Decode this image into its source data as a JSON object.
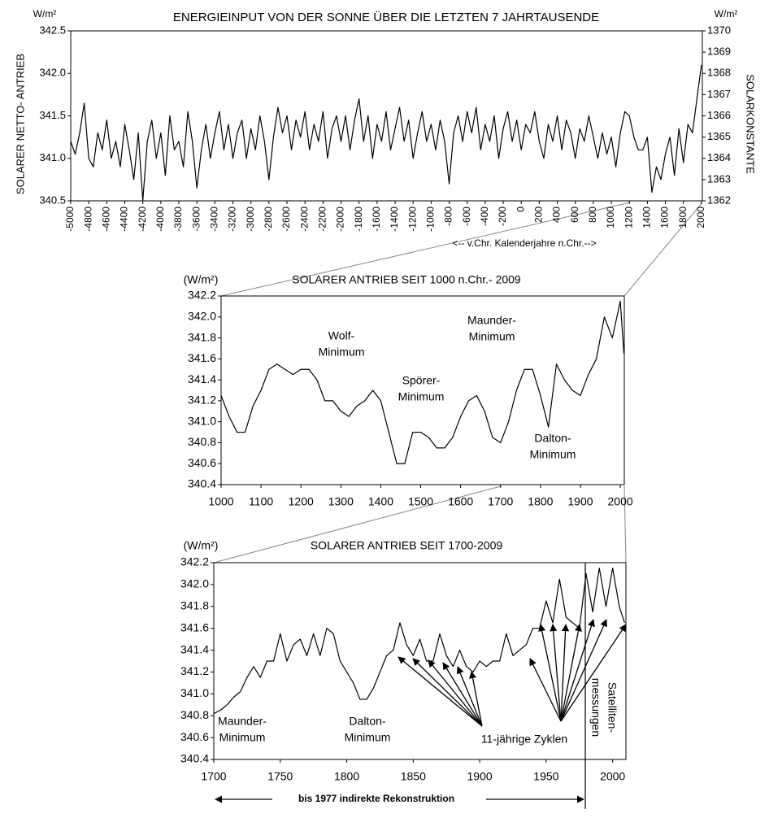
{
  "chart_data": [
    {
      "type": "line",
      "title": "ENERGIEINPUT VON DER SONNE ÜBER DIE LETZTEN 7 JAHRTAUSENDE",
      "y_unit": "W/m²",
      "y2_unit": "W/m²",
      "y_label": "SOLARER NETTO- ANTRIEB",
      "y2_label": "SOLARKONSTANTE",
      "x_label": "<-- v.Chr. Kalenderjahre n.Chr.-->",
      "x": [
        -5000,
        -4950,
        -4900,
        -4850,
        -4800,
        -4750,
        -4700,
        -4650,
        -4600,
        -4550,
        -4500,
        -4450,
        -4400,
        -4350,
        -4300,
        -4250,
        -4200,
        -4150,
        -4100,
        -4050,
        -4000,
        -3950,
        -3900,
        -3850,
        -3800,
        -3750,
        -3700,
        -3650,
        -3600,
        -3550,
        -3500,
        -3450,
        -3400,
        -3350,
        -3300,
        -3250,
        -3200,
        -3150,
        -3100,
        -3050,
        -3000,
        -2950,
        -2900,
        -2850,
        -2800,
        -2750,
        -2700,
        -2650,
        -2600,
        -2550,
        -2500,
        -2450,
        -2400,
        -2350,
        -2300,
        -2250,
        -2200,
        -2150,
        -2100,
        -2050,
        -2000,
        -1950,
        -1900,
        -1850,
        -1800,
        -1750,
        -1700,
        -1650,
        -1600,
        -1550,
        -1500,
        -1450,
        -1400,
        -1350,
        -1300,
        -1250,
        -1200,
        -1150,
        -1100,
        -1050,
        -1000,
        -950,
        -900,
        -850,
        -800,
        -750,
        -700,
        -650,
        -600,
        -550,
        -500,
        -450,
        -400,
        -350,
        -300,
        -250,
        -200,
        -150,
        -100,
        -50,
        0,
        50,
        100,
        150,
        200,
        250,
        300,
        350,
        400,
        450,
        500,
        550,
        600,
        650,
        700,
        750,
        800,
        850,
        900,
        950,
        1000,
        1050,
        1100,
        1150,
        1200,
        1250,
        1300,
        1350,
        1400,
        1450,
        1500,
        1550,
        1600,
        1650,
        1700,
        1750,
        1800,
        1850,
        1900,
        1950,
        2000
      ],
      "series": [
        {
          "color": "#000000",
          "values": [
            341.2,
            341.05,
            341.3,
            341.65,
            341.0,
            340.9,
            341.3,
            341.1,
            341.45,
            341.0,
            341.2,
            340.9,
            341.4,
            341.1,
            340.75,
            341.3,
            340.5,
            341.2,
            341.45,
            341.0,
            341.3,
            340.8,
            341.5,
            341.1,
            341.2,
            340.9,
            341.55,
            341.2,
            340.65,
            341.1,
            341.4,
            341.0,
            341.3,
            341.55,
            341.1,
            341.4,
            341.0,
            341.3,
            341.45,
            341.0,
            341.35,
            341.1,
            341.5,
            341.2,
            340.75,
            341.25,
            341.6,
            341.3,
            341.5,
            341.1,
            341.45,
            341.25,
            341.55,
            341.1,
            341.4,
            341.2,
            341.55,
            341.0,
            341.35,
            341.5,
            341.2,
            341.5,
            341.1,
            341.45,
            341.7,
            341.2,
            341.5,
            341.0,
            341.4,
            341.2,
            341.55,
            341.1,
            341.35,
            341.6,
            341.2,
            341.45,
            341.0,
            341.3,
            341.55,
            341.2,
            341.4,
            341.1,
            341.45,
            341.2,
            340.7,
            341.3,
            341.5,
            341.2,
            341.55,
            341.3,
            341.6,
            341.1,
            341.4,
            341.2,
            341.5,
            341.0,
            341.35,
            341.55,
            341.2,
            341.45,
            341.1,
            341.4,
            341.3,
            341.55,
            341.2,
            341.0,
            341.4,
            341.2,
            341.5,
            341.1,
            341.45,
            341.3,
            341.0,
            341.35,
            341.2,
            341.5,
            341.25,
            341.0,
            341.3,
            341.05,
            341.25,
            340.9,
            341.3,
            341.55,
            341.5,
            341.25,
            341.1,
            341.1,
            341.25,
            340.6,
            340.9,
            340.75,
            341.05,
            341.25,
            340.8,
            341.35,
            340.95,
            341.4,
            341.3,
            341.7,
            342.1
          ]
        }
      ],
      "xlim": [
        -5000,
        2010
      ],
      "xticks": [
        -5000,
        -4800,
        -4600,
        -4400,
        -4200,
        -4000,
        -3800,
        -3600,
        -3400,
        -3200,
        -3000,
        -2800,
        -2600,
        -2400,
        -2200,
        -2000,
        -1800,
        -1600,
        -1400,
        -1200,
        -1000,
        -800,
        -600,
        -400,
        -200,
        0,
        200,
        400,
        600,
        800,
        1000,
        1200,
        1400,
        1600,
        1800,
        2000
      ],
      "ylim": [
        340.5,
        342.5
      ],
      "yticks": [
        340.5,
        {
          "value": 341,
          "label": "341.0"
        },
        341.5,
        {
          "value": 342,
          "label": "342.0"
        },
        342.5
      ],
      "y2lim": [
        1362,
        1370
      ],
      "y2ticks": [
        1362,
        1363,
        1364,
        1365,
        1366,
        1367,
        1368,
        1369,
        1370
      ]
    },
    {
      "type": "line",
      "title": "SOLARER ANTRIEB SEIT 1000 n.Chr.- 2009",
      "y_unit": "(W/m²)",
      "x": [
        1000,
        1020,
        1040,
        1060,
        1080,
        1100,
        1120,
        1140,
        1160,
        1180,
        1200,
        1220,
        1240,
        1260,
        1280,
        1300,
        1320,
        1340,
        1360,
        1380,
        1400,
        1420,
        1440,
        1460,
        1480,
        1500,
        1520,
        1540,
        1560,
        1580,
        1600,
        1620,
        1640,
        1660,
        1680,
        1700,
        1720,
        1740,
        1760,
        1780,
        1800,
        1820,
        1840,
        1860,
        1880,
        1900,
        1920,
        1940,
        1960,
        1980,
        2000,
        2009
      ],
      "series": [
        {
          "color": "#000000",
          "values": [
            341.25,
            341.05,
            340.9,
            340.9,
            341.15,
            341.3,
            341.5,
            341.55,
            341.5,
            341.45,
            341.5,
            341.5,
            341.4,
            341.2,
            341.2,
            341.1,
            341.05,
            341.15,
            341.2,
            341.3,
            341.2,
            340.9,
            340.6,
            340.6,
            340.9,
            340.9,
            340.85,
            340.75,
            340.75,
            340.85,
            341.05,
            341.2,
            341.25,
            341.1,
            340.85,
            340.8,
            341.0,
            341.3,
            341.5,
            341.5,
            341.25,
            340.95,
            341.55,
            341.4,
            341.3,
            341.25,
            341.45,
            341.6,
            342.0,
            341.8,
            342.15,
            341.65
          ]
        }
      ],
      "xlim": [
        1000,
        2010
      ],
      "xticks": [
        1000,
        1100,
        1200,
        1300,
        1400,
        1500,
        1600,
        1700,
        1800,
        1900,
        2000
      ],
      "ylim": [
        340.4,
        342.2
      ],
      "yticks": [
        340.4,
        340.6,
        340.8,
        {
          "value": 341,
          "label": "341.0"
        },
        341.2,
        341.4,
        341.6,
        341.8,
        {
          "value": 342,
          "label": "342.0"
        },
        342.2
      ],
      "annotations": [
        {
          "lines": [
            "Wolf-",
            "Minimum"
          ]
        },
        {
          "lines": [
            "Spörer-",
            "Minimum"
          ]
        },
        {
          "lines": [
            "Maunder-",
            "Minimum"
          ]
        },
        {
          "lines": [
            "Dalton-",
            "Minimum"
          ]
        }
      ]
    },
    {
      "type": "line",
      "title": "SOLARER ANTRIEB SEIT 1700-2009",
      "y_unit": "(W/m²)",
      "x": [
        1700,
        1705,
        1710,
        1715,
        1720,
        1725,
        1730,
        1735,
        1740,
        1745,
        1750,
        1755,
        1760,
        1765,
        1770,
        1775,
        1780,
        1785,
        1790,
        1795,
        1800,
        1805,
        1810,
        1815,
        1820,
        1825,
        1830,
        1835,
        1840,
        1845,
        1850,
        1855,
        1860,
        1865,
        1870,
        1875,
        1880,
        1885,
        1890,
        1895,
        1900,
        1905,
        1910,
        1915,
        1920,
        1925,
        1930,
        1935,
        1940,
        1945,
        1950,
        1955,
        1960,
        1965,
        1970,
        1975,
        1980,
        1985,
        1990,
        1995,
        2000,
        2005,
        2009
      ],
      "series": [
        {
          "color": "#000000",
          "values": [
            340.82,
            340.85,
            340.9,
            340.97,
            341.02,
            341.15,
            341.25,
            341.15,
            341.3,
            341.3,
            341.55,
            341.3,
            341.45,
            341.5,
            341.35,
            341.55,
            341.35,
            341.6,
            341.55,
            341.3,
            341.2,
            341.1,
            340.95,
            340.95,
            341.05,
            341.2,
            341.35,
            341.4,
            341.65,
            341.45,
            341.35,
            341.5,
            341.3,
            341.3,
            341.55,
            341.35,
            341.25,
            341.4,
            341.25,
            341.2,
            341.3,
            341.25,
            341.3,
            341.3,
            341.55,
            341.35,
            341.4,
            341.45,
            341.6,
            341.6,
            341.85,
            341.65,
            342.05,
            341.7,
            341.65,
            341.6,
            342.1,
            341.75,
            342.15,
            341.8,
            342.15,
            341.8,
            341.65
          ]
        }
      ],
      "xlim": [
        1700,
        2010
      ],
      "xticks": [
        1700,
        1750,
        1800,
        1850,
        1900,
        1950,
        2000
      ],
      "ylim": [
        340.4,
        342.2
      ],
      "yticks": [
        340.4,
        340.6,
        340.8,
        {
          "value": 341,
          "label": "341.0"
        },
        341.2,
        341.4,
        341.6,
        341.8,
        {
          "value": 342,
          "label": "342.0"
        },
        342.2
      ],
      "annotations": [
        {
          "lines": [
            "Maunder-",
            "Minimum"
          ]
        },
        {
          "lines": [
            "Dalton-",
            "Minimum"
          ]
        },
        {
          "lines": [
            "11-jährige Zyklen"
          ]
        },
        {
          "lines": [
            "Satelliten-",
            "messungen"
          ]
        },
        {
          "lines": [
            "bis 1977 indirekte Rekonstruktion"
          ]
        }
      ]
    }
  ]
}
